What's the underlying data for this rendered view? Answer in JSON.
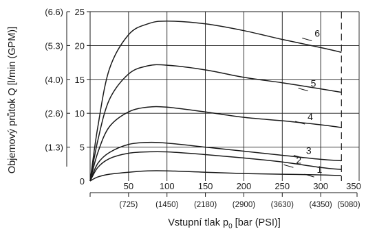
{
  "chart_data": {
    "type": "line",
    "xlabel": {
      "text": "Vstupní tlak p",
      "sub": "0",
      "rest": " [bar (PSI)]"
    },
    "ylabel": "Objemový průtok Q [l/min (GPM)]",
    "xlim": [
      0,
      350
    ],
    "ylim": [
      0,
      25
    ],
    "x_ticks": [
      50,
      100,
      150,
      200,
      250,
      300,
      350
    ],
    "x_tick_labels": [
      "50",
      "100",
      "150",
      "200",
      "250",
      "300",
      "350"
    ],
    "x_secondary_ticks": [
      50,
      100,
      150,
      200,
      250,
      300,
      350
    ],
    "x_secondary_labels": [
      "(725)",
      "(1450)",
      "(2180)",
      "(2900)",
      "(3630)",
      "(4350)",
      "(5080)"
    ],
    "y_ticks": [
      0,
      5,
      10,
      15,
      20,
      25
    ],
    "y_tick_labels": [
      "0",
      "5",
      "10",
      "15",
      "20",
      "25"
    ],
    "y_secondary_ticks": [
      5,
      10,
      15,
      20,
      25
    ],
    "y_secondary_labels": [
      "(1.3)",
      "(2.6)",
      "(4.0)",
      "(5.3)",
      "(6.6)"
    ],
    "grid": true,
    "limit_line_x": 327,
    "series": [
      {
        "name": "1",
        "label_at": [
          295,
          0.8
        ],
        "x": [
          0,
          10,
          25,
          50,
          75,
          100,
          150,
          200,
          250,
          300,
          327
        ],
        "y": [
          0,
          0.6,
          1.0,
          1.3,
          1.5,
          1.5,
          1.3,
          1.1,
          1.0,
          0.9,
          0.8
        ]
      },
      {
        "name": "2",
        "label_at": [
          268,
          2.2
        ],
        "x": [
          0,
          10,
          25,
          50,
          75,
          100,
          150,
          200,
          250,
          300,
          327
        ],
        "y": [
          0,
          2.0,
          3.3,
          4.1,
          4.3,
          4.3,
          3.9,
          3.4,
          2.8,
          2.0,
          1.7
        ]
      },
      {
        "name": "3",
        "label_at": [
          281,
          3.6
        ],
        "x": [
          0,
          10,
          25,
          50,
          75,
          100,
          150,
          200,
          250,
          300,
          327
        ],
        "y": [
          0,
          2.6,
          4.2,
          5.4,
          5.7,
          5.6,
          5.0,
          4.4,
          3.8,
          3.2,
          3.0
        ]
      },
      {
        "name": "4",
        "label_at": [
          283,
          8.6
        ],
        "x": [
          0,
          10,
          25,
          50,
          75,
          100,
          150,
          200,
          250,
          300,
          327
        ],
        "y": [
          0,
          4.2,
          8.0,
          10.2,
          10.9,
          10.9,
          10.2,
          9.4,
          8.9,
          8.3,
          7.9
        ]
      },
      {
        "name": "5",
        "label_at": [
          287,
          13.5
        ],
        "x": [
          0,
          10,
          25,
          50,
          75,
          100,
          150,
          200,
          250,
          300,
          327
        ],
        "y": [
          0,
          6.0,
          12.0,
          15.8,
          17.0,
          17.1,
          16.4,
          15.3,
          14.5,
          13.6,
          13.1
        ]
      },
      {
        "name": "6",
        "label_at": [
          292,
          20.9
        ],
        "x": [
          0,
          10,
          25,
          50,
          75,
          100,
          150,
          200,
          250,
          300,
          327
        ],
        "y": [
          0,
          8.0,
          16.5,
          21.6,
          23.2,
          23.6,
          23.2,
          22.2,
          20.9,
          19.7,
          19.0
        ]
      }
    ]
  }
}
